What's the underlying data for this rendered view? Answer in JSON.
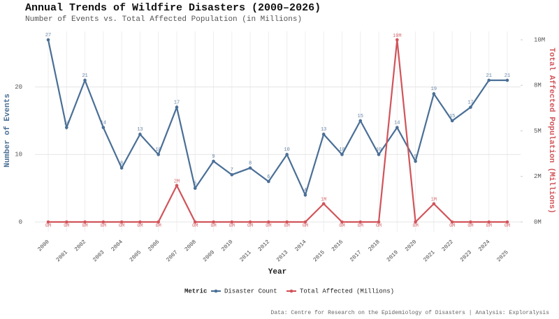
{
  "chart_data": {
    "type": "line",
    "title": "Annual Trends of Wildfire Disasters (2000–2026)",
    "subtitle": "Number of Events vs. Total Affected Population (in Millions)",
    "x_label": "Year",
    "y_label": "Number of Events",
    "y2_label": "Total Affected Population (Millions)",
    "legend_title": "Metric",
    "caption": "Data: Centre for Research on the Epidemiology of Disasters | Analysis: Exploralysis",
    "categories": [
      "2000",
      "2001",
      "2002",
      "2003",
      "2004",
      "2005",
      "2006",
      "2007",
      "2008",
      "2009",
      "2010",
      "2011",
      "2012",
      "2013",
      "2014",
      "2015",
      "2016",
      "2017",
      "2018",
      "2019",
      "2020",
      "2021",
      "2022",
      "2023",
      "2024",
      "2025"
    ],
    "series": [
      {
        "name": "Disaster Count",
        "color": "#4a6f96",
        "values": [
          27,
          14,
          21,
          14,
          8,
          13,
          10,
          17,
          5,
          9,
          7,
          8,
          6,
          10,
          4,
          13,
          10,
          15,
          10,
          14,
          9,
          19,
          15,
          17,
          21,
          21
        ]
      },
      {
        "name": "Total Affected (Millions)",
        "color": "#d1545a",
        "axis": "y2",
        "values": [
          0,
          0,
          0,
          0,
          0,
          0,
          0,
          2,
          0,
          0,
          0,
          0,
          0,
          0,
          0,
          1,
          0,
          0,
          0,
          10,
          0,
          1,
          0,
          0,
          0,
          0
        ],
        "value_labels": [
          "0M",
          "0M",
          "0M",
          "0M",
          "0M",
          "0M",
          "0M",
          "2M",
          "0M",
          "0M",
          "0M",
          "0M",
          "0M",
          "0M",
          "0M",
          "1M",
          "0M",
          "0M",
          "0M",
          "10M",
          "0M",
          "1M",
          "0M",
          "0M",
          "0M",
          "0M"
        ]
      }
    ],
    "ylim": [
      0,
      27
    ],
    "yticks": [
      0,
      10,
      20
    ],
    "y2lim": [
      0,
      10
    ],
    "y2ticks": [
      {
        "value": 0,
        "label": "0M"
      },
      {
        "value": 2.5,
        "label": "2M"
      },
      {
        "value": 5,
        "label": "5M"
      },
      {
        "value": 7.5,
        "label": "8M"
      },
      {
        "value": 10,
        "label": "10M"
      }
    ],
    "grid": true,
    "legend": "bottom"
  }
}
